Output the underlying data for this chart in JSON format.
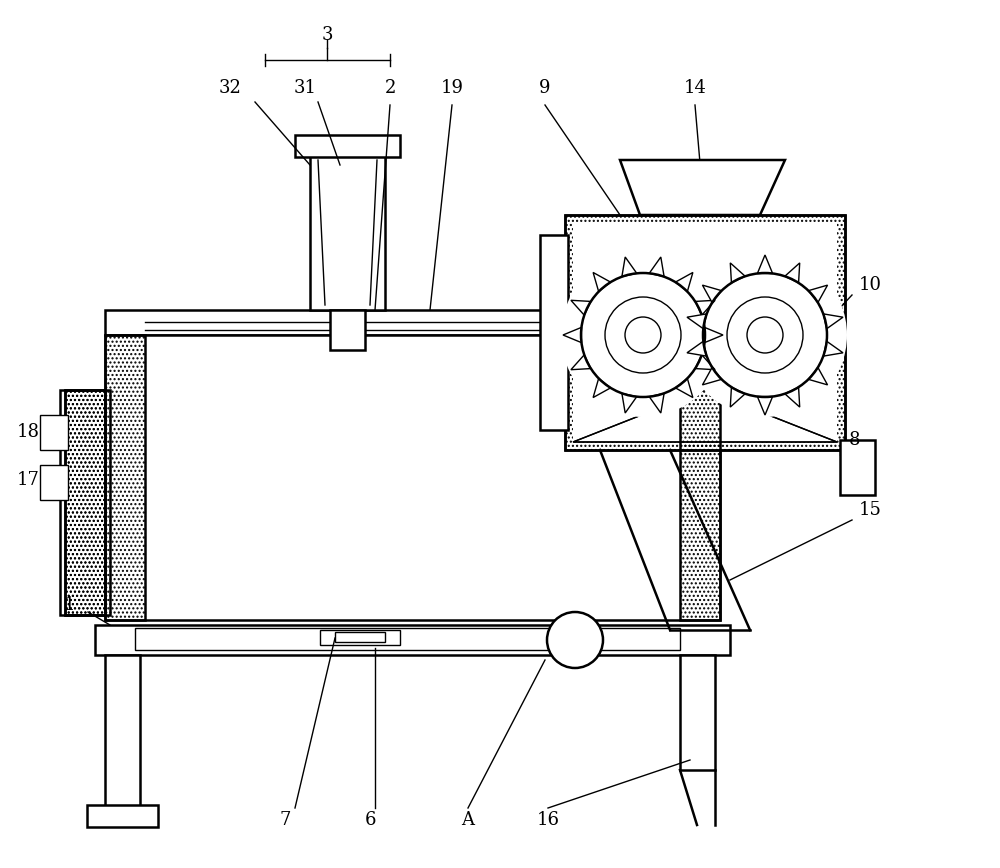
{
  "bg_color": "#ffffff",
  "figsize": [
    10.0,
    8.68
  ],
  "dpi": 100,
  "lw_main": 1.8,
  "lw_thin": 1.0,
  "fs_label": 13
}
